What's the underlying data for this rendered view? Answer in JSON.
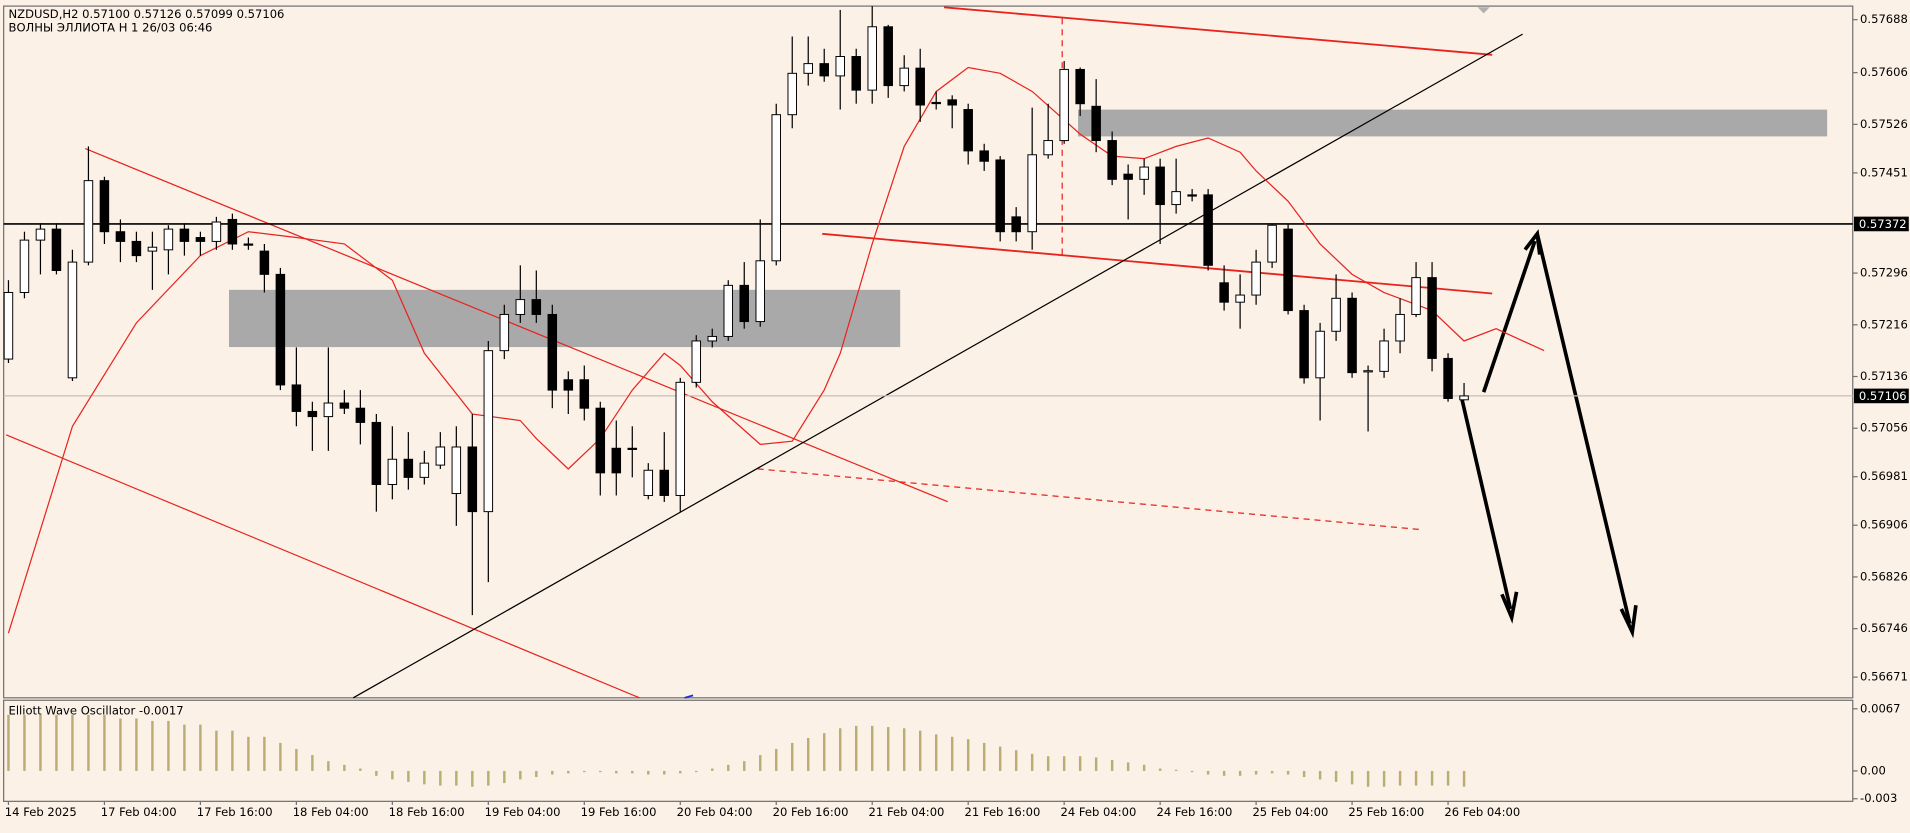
{
  "chart_data": {
    "type": "candlestick",
    "header": [
      "NZDUSD,H2  0.57100 0.57126 0.57099 0.57106",
      "ВОЛНЫ ЭЛЛИОТА H 1 26/03 06:46"
    ],
    "categories": [
      "14 Feb 2025",
      null,
      null,
      null,
      null,
      null,
      "17 Feb 04:00",
      null,
      null,
      null,
      null,
      null,
      "17 Feb 16:00",
      null,
      null,
      null,
      null,
      null,
      "18 Feb 04:00",
      null,
      null,
      null,
      null,
      null,
      "18 Feb 16:00",
      null,
      null,
      null,
      null,
      null,
      "19 Feb 04:00",
      null,
      null,
      null,
      null,
      null,
      "19 Feb 16:00",
      null,
      null,
      null,
      null,
      null,
      "20 Feb 04:00",
      null,
      null,
      null,
      null,
      null,
      "20 Feb 16:00",
      null,
      null,
      null,
      null,
      null,
      "21 Feb 04:00",
      null,
      null,
      null,
      null,
      null,
      "21 Feb 16:00",
      null,
      null,
      null,
      null,
      null,
      "24 Feb 04:00",
      null,
      null,
      null,
      null,
      null,
      "24 Feb 16:00",
      null,
      null,
      null,
      null,
      null,
      "25 Feb 04:00",
      null,
      null,
      null,
      null,
      null,
      "25 Feb 16:00",
      null,
      null,
      null,
      null,
      null,
      "26 Feb 04:00",
      null
    ],
    "ohlc": [
      [
        0.57163,
        0.57285,
        0.57157,
        0.57266
      ],
      [
        0.57266,
        0.5736,
        0.57257,
        0.57347
      ],
      [
        0.57347,
        0.57373,
        0.57294,
        0.57364
      ],
      [
        0.57364,
        0.57373,
        0.57294,
        0.573
      ],
      [
        0.57134,
        0.57332,
        0.57129,
        0.57313
      ],
      [
        0.57313,
        0.57492,
        0.57308,
        0.57439
      ],
      [
        0.57439,
        0.57445,
        0.57341,
        0.5736
      ],
      [
        0.5736,
        0.57379,
        0.57313,
        0.57345
      ],
      [
        0.57345,
        0.5736,
        0.57313,
        0.57323
      ],
      [
        0.5733,
        0.5736,
        0.5727,
        0.57336
      ],
      [
        0.57332,
        0.5737,
        0.57294,
        0.57364
      ],
      [
        0.57364,
        0.57373,
        0.57323,
        0.57345
      ],
      [
        0.57351,
        0.5736,
        0.57323,
        0.57345
      ],
      [
        0.57345,
        0.57383,
        0.57332,
        0.57375
      ],
      [
        0.57379,
        0.57388,
        0.57332,
        0.57341
      ],
      [
        0.57341,
        0.57351,
        0.57332,
        0.5734
      ],
      [
        0.5733,
        0.57341,
        0.57266,
        0.57294
      ],
      [
        0.57294,
        0.57304,
        0.57115,
        0.57123
      ],
      [
        0.57123,
        0.57181,
        0.57059,
        0.57082
      ],
      [
        0.57082,
        0.57097,
        0.57021,
        0.57074
      ],
      [
        0.57074,
        0.57181,
        0.57021,
        0.57095
      ],
      [
        0.57095,
        0.57115,
        0.57078,
        0.57087
      ],
      [
        0.57087,
        0.57115,
        0.57031,
        0.57065
      ],
      [
        0.57065,
        0.57078,
        0.56927,
        0.56969
      ],
      [
        0.56969,
        0.57059,
        0.56946,
        0.57008
      ],
      [
        0.57008,
        0.5705,
        0.56961,
        0.5698
      ],
      [
        0.5698,
        0.57021,
        0.56969,
        0.57002
      ],
      [
        0.56999,
        0.5705,
        0.56993,
        0.57027
      ],
      [
        0.56955,
        0.57059,
        0.56905,
        0.57027
      ],
      [
        0.57027,
        0.57078,
        0.56767,
        0.56927
      ],
      [
        0.56927,
        0.57191,
        0.56818,
        0.57176
      ],
      [
        0.57176,
        0.57247,
        0.57163,
        0.57232
      ],
      [
        0.57232,
        0.57308,
        0.57219,
        0.57255
      ],
      [
        0.57255,
        0.573,
        0.57219,
        0.57232
      ],
      [
        0.57232,
        0.57247,
        0.57087,
        0.57115
      ],
      [
        0.57131,
        0.57144,
        0.57078,
        0.57115
      ],
      [
        0.57131,
        0.57153,
        0.57068,
        0.57087
      ],
      [
        0.57087,
        0.57097,
        0.56952,
        0.56987
      ],
      [
        0.57025,
        0.57068,
        0.56952,
        0.56987
      ],
      [
        0.57025,
        0.57059,
        0.5698,
        0.57024
      ],
      [
        0.56952,
        0.57002,
        0.56946,
        0.56991
      ],
      [
        0.56991,
        0.5705,
        0.56942,
        0.56952
      ],
      [
        0.56952,
        0.57134,
        0.56927,
        0.57127
      ],
      [
        0.57127,
        0.572,
        0.57119,
        0.57191
      ],
      [
        0.57191,
        0.5721,
        0.57181,
        0.57198
      ],
      [
        0.57198,
        0.57285,
        0.57191,
        0.57277
      ],
      [
        0.57277,
        0.57313,
        0.5721,
        0.57221
      ],
      [
        0.57221,
        0.57379,
        0.57213,
        0.57315
      ],
      [
        0.57315,
        0.57558,
        0.57308,
        0.57541
      ],
      [
        0.57541,
        0.57662,
        0.5752,
        0.57605
      ],
      [
        0.57605,
        0.57662,
        0.57586,
        0.5762
      ],
      [
        0.5762,
        0.57643,
        0.57592,
        0.57601
      ],
      [
        0.57601,
        0.57703,
        0.57549,
        0.57631
      ],
      [
        0.57631,
        0.57643,
        0.57558,
        0.57579
      ],
      [
        0.57579,
        0.57709,
        0.57558,
        0.57677
      ],
      [
        0.57677,
        0.5768,
        0.57567,
        0.57586
      ],
      [
        0.57586,
        0.57633,
        0.57577,
        0.57613
      ],
      [
        0.57613,
        0.57643,
        0.5753,
        0.57556
      ],
      [
        0.5756,
        0.57577,
        0.57549,
        0.57559
      ],
      [
        0.57564,
        0.57571,
        0.5752,
        0.57556
      ],
      [
        0.57549,
        0.57558,
        0.57464,
        0.57485
      ],
      [
        0.57485,
        0.57496,
        0.57454,
        0.57469
      ],
      [
        0.57471,
        0.57477,
        0.57345,
        0.5736
      ],
      [
        0.57383,
        0.57398,
        0.57345,
        0.5736
      ],
      [
        0.5736,
        0.57552,
        0.57332,
        0.57479
      ],
      [
        0.57479,
        0.57558,
        0.57473,
        0.57501
      ],
      [
        0.57501,
        0.57624,
        0.57496,
        0.57611
      ],
      [
        0.57611,
        0.57614,
        0.57539,
        0.57558
      ],
      [
        0.57554,
        0.57596,
        0.57483,
        0.57501
      ],
      [
        0.57501,
        0.57515,
        0.57432,
        0.57441
      ],
      [
        0.57449,
        0.57464,
        0.57379,
        0.57441
      ],
      [
        0.57441,
        0.57473,
        0.57417,
        0.5746
      ],
      [
        0.5746,
        0.57473,
        0.57341,
        0.57402
      ],
      [
        0.57402,
        0.57473,
        0.57388,
        0.57422
      ],
      [
        0.57417,
        0.57426,
        0.57407,
        0.57416
      ],
      [
        0.57417,
        0.57426,
        0.573,
        0.57308
      ],
      [
        0.57281,
        0.57308,
        0.57238,
        0.57251
      ],
      [
        0.57251,
        0.57294,
        0.5721,
        0.57262
      ],
      [
        0.57262,
        0.57332,
        0.57247,
        0.57313
      ],
      [
        0.57313,
        0.57373,
        0.57304,
        0.5737
      ],
      [
        0.57364,
        0.57373,
        0.57232,
        0.57238
      ],
      [
        0.57238,
        0.57247,
        0.57125,
        0.57134
      ],
      [
        0.57134,
        0.57219,
        0.57068,
        0.57206
      ],
      [
        0.57206,
        0.57294,
        0.57191,
        0.57257
      ],
      [
        0.57257,
        0.57266,
        0.57134,
        0.57142
      ],
      [
        0.57144,
        0.57153,
        0.57051,
        0.57145
      ],
      [
        0.57144,
        0.5721,
        0.57134,
        0.57191
      ],
      [
        0.57191,
        0.57257,
        0.57172,
        0.57232
      ],
      [
        0.57232,
        0.57313,
        0.57228,
        0.57289
      ],
      [
        0.57289,
        0.57313,
        0.57144,
        0.57164
      ],
      [
        0.57164,
        0.57172,
        0.57097,
        0.57102
      ],
      [
        0.571,
        0.57126,
        0.57099,
        0.57106
      ]
    ],
    "up_color": "#ffffff",
    "down_color": "#000000",
    "xlim": [
      -0.3,
      115.3
    ],
    "ylim": [
      0.56639,
      0.57709
    ],
    "yticks": [
      0.57688,
      0.57606,
      0.57526,
      0.57451,
      0.57296,
      0.57216,
      0.57136,
      0.57056,
      0.56981,
      0.56906,
      0.56826,
      0.56746,
      0.56671
    ],
    "price_lines": [
      {
        "value": 0.57372,
        "color": "#000000"
      },
      {
        "value": 0.57106,
        "color": "#c8c0b8"
      }
    ],
    "ma": {
      "color": "#e8231e",
      "x": [
        0,
        4,
        8,
        12,
        15,
        18,
        21,
        24,
        26,
        29,
        32,
        33,
        35,
        37,
        39,
        41,
        42,
        44,
        47,
        49,
        51,
        52,
        54,
        56,
        58,
        60,
        62,
        64,
        67,
        69,
        71,
        73,
        75,
        77,
        78,
        80,
        82,
        84,
        86,
        89,
        91,
        93,
        96
      ],
      "values": [
        0.56739,
        0.57059,
        0.57219,
        0.57323,
        0.5736,
        0.57351,
        0.57341,
        0.57285,
        0.57172,
        0.57078,
        0.57068,
        0.5704,
        0.56993,
        0.5704,
        0.57115,
        0.57172,
        0.57153,
        0.57097,
        0.57031,
        0.57036,
        0.57115,
        0.57172,
        0.57341,
        0.57492,
        0.57577,
        0.57614,
        0.57605,
        0.57577,
        0.57511,
        0.57477,
        0.57473,
        0.57492,
        0.57505,
        0.57483,
        0.57454,
        0.57407,
        0.57341,
        0.57294,
        0.57266,
        0.57238,
        0.57191,
        0.5721,
        0.57176
      ]
    },
    "oscillator": {
      "title": "Elliott Wave Oscillator -0.0017",
      "color": "#b9ad72",
      "values": [
        0.00604,
        0.00604,
        0.00604,
        0.00604,
        0.00604,
        0.00604,
        0.00604,
        0.00565,
        0.00565,
        0.00539,
        0.00539,
        0.00499,
        0.00499,
        0.00434,
        0.00434,
        0.00368,
        0.00368,
        0.00302,
        0.00237,
        0.00171,
        0.00105,
        0.00066,
        0.00026,
        -0.00053,
        -0.00092,
        -0.00118,
        -0.00145,
        -0.00158,
        -0.00158,
        -0.00171,
        -0.00158,
        -0.00131,
        -0.00092,
        -0.00066,
        -0.00039,
        -0.00026,
        -0.00013,
        -0.00013,
        -0.00026,
        -0.00026,
        -0.00039,
        -0.00039,
        -0.00026,
        -0.00013,
        0.00026,
        0.00066,
        0.00105,
        0.00171,
        0.00237,
        0.00302,
        0.00355,
        0.00407,
        0.0046,
        0.00486,
        0.00486,
        0.00473,
        0.0046,
        0.00434,
        0.00394,
        0.00368,
        0.00342,
        0.00302,
        0.00263,
        0.00223,
        0.00184,
        0.00158,
        0.00158,
        0.00158,
        0.00145,
        0.00118,
        0.00092,
        0.00066,
        0.00026,
        0.00013,
        -0.00013,
        -0.00039,
        -0.00053,
        -0.00053,
        -0.00039,
        -0.00026,
        -0.00039,
        -0.00066,
        -0.00092,
        -0.00118,
        -0.00145,
        -0.00171,
        -0.00171,
        -0.00158,
        -0.00158,
        -0.00158,
        -0.00158,
        -0.0017
      ],
      "ylim": [
        -0.00328,
        0.00762
      ],
      "yticks": [
        0.0067,
        {
          "value": 0,
          "label": "0.00"
        },
        -0.003
      ]
    }
  }
}
